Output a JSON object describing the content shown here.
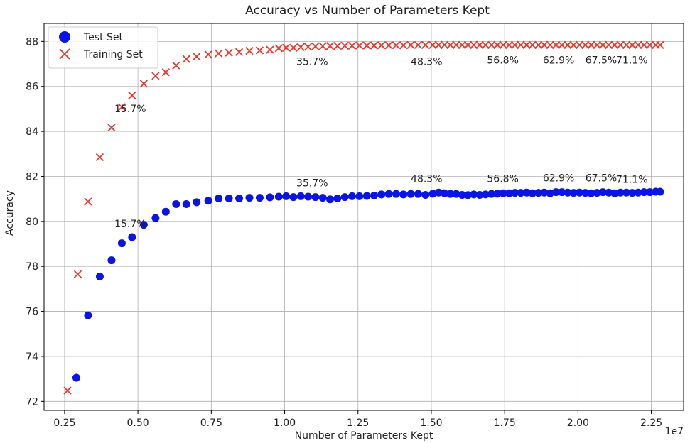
{
  "chart_data": {
    "type": "scatter",
    "title": "Accuracy vs Number of Parameters Kept",
    "xlabel": "Number of Parameters Kept",
    "ylabel": "Accuracy",
    "x_scale_label": "1e7",
    "xlim": [
      1800000,
      23600000
    ],
    "ylim": [
      71.6,
      88.8
    ],
    "x_ticks": [
      2500000,
      5000000,
      7500000,
      10000000,
      12500000,
      15000000,
      17500000,
      20000000,
      22500000
    ],
    "x_tick_labels": [
      "0.25",
      "0.50",
      "0.75",
      "1.00",
      "1.25",
      "1.50",
      "1.75",
      "2.00",
      "2.25"
    ],
    "y_ticks": [
      72,
      74,
      76,
      78,
      80,
      82,
      84,
      86,
      88
    ],
    "y_tick_labels": [
      "72",
      "74",
      "76",
      "78",
      "80",
      "82",
      "84",
      "86",
      "88"
    ],
    "grid": true,
    "legend_position": "top-left",
    "series": [
      {
        "name": "Test Set",
        "marker": "circle",
        "color": "#0a14e6",
        "points": [
          [
            2900000,
            73.05
          ],
          [
            3300000,
            75.82
          ],
          [
            3700000,
            77.55
          ],
          [
            4100000,
            78.27
          ],
          [
            4450000,
            79.03
          ],
          [
            4800000,
            79.3
          ],
          [
            5200000,
            79.85
          ],
          [
            5600000,
            80.15
          ],
          [
            5950000,
            80.43
          ],
          [
            6300000,
            80.77
          ],
          [
            6650000,
            80.77
          ],
          [
            7000000,
            80.85
          ],
          [
            7400000,
            80.92
          ],
          [
            7750000,
            81.02
          ],
          [
            8100000,
            81.02
          ],
          [
            8450000,
            81.02
          ],
          [
            8800000,
            81.05
          ],
          [
            9150000,
            81.05
          ],
          [
            9500000,
            81.07
          ],
          [
            9800000,
            81.1
          ],
          [
            10050000,
            81.12
          ],
          [
            10300000,
            81.08
          ],
          [
            10550000,
            81.12
          ],
          [
            10800000,
            81.1
          ],
          [
            11050000,
            81.08
          ],
          [
            11300000,
            81.05
          ],
          [
            11550000,
            80.98
          ],
          [
            11800000,
            81.02
          ],
          [
            12050000,
            81.08
          ],
          [
            12300000,
            81.12
          ],
          [
            12550000,
            81.12
          ],
          [
            12800000,
            81.13
          ],
          [
            13050000,
            81.15
          ],
          [
            13300000,
            81.2
          ],
          [
            13550000,
            81.22
          ],
          [
            13800000,
            81.22
          ],
          [
            14050000,
            81.2
          ],
          [
            14300000,
            81.22
          ],
          [
            14550000,
            81.22
          ],
          [
            14800000,
            81.18
          ],
          [
            15050000,
            81.23
          ],
          [
            15250000,
            81.28
          ],
          [
            15450000,
            81.25
          ],
          [
            15650000,
            81.22
          ],
          [
            15850000,
            81.22
          ],
          [
            16050000,
            81.18
          ],
          [
            16250000,
            81.17
          ],
          [
            16450000,
            81.2
          ],
          [
            16650000,
            81.18
          ],
          [
            16850000,
            81.2
          ],
          [
            17050000,
            81.22
          ],
          [
            17250000,
            81.23
          ],
          [
            17450000,
            81.25
          ],
          [
            17650000,
            81.25
          ],
          [
            17850000,
            81.27
          ],
          [
            18050000,
            81.27
          ],
          [
            18250000,
            81.28
          ],
          [
            18450000,
            81.25
          ],
          [
            18650000,
            81.27
          ],
          [
            18850000,
            81.28
          ],
          [
            19050000,
            81.25
          ],
          [
            19250000,
            81.3
          ],
          [
            19450000,
            81.3
          ],
          [
            19650000,
            81.28
          ],
          [
            19850000,
            81.27
          ],
          [
            20050000,
            81.28
          ],
          [
            20250000,
            81.27
          ],
          [
            20450000,
            81.25
          ],
          [
            20650000,
            81.27
          ],
          [
            20850000,
            81.3
          ],
          [
            21050000,
            81.28
          ],
          [
            21250000,
            81.25
          ],
          [
            21450000,
            81.28
          ],
          [
            21650000,
            81.28
          ],
          [
            21850000,
            81.27
          ],
          [
            22050000,
            81.28
          ],
          [
            22250000,
            81.3
          ],
          [
            22450000,
            81.3
          ],
          [
            22650000,
            81.32
          ],
          [
            22800000,
            81.32
          ]
        ]
      },
      {
        "name": "Training Set",
        "marker": "x",
        "color": "#e8392d",
        "points": [
          [
            2600000,
            72.48
          ],
          [
            2950000,
            77.65
          ],
          [
            3300000,
            80.88
          ],
          [
            3700000,
            82.85
          ],
          [
            4100000,
            84.17
          ],
          [
            4450000,
            85.08
          ],
          [
            4800000,
            85.6
          ],
          [
            5200000,
            86.12
          ],
          [
            5600000,
            86.47
          ],
          [
            5950000,
            86.63
          ],
          [
            6300000,
            86.93
          ],
          [
            6650000,
            87.22
          ],
          [
            7000000,
            87.33
          ],
          [
            7400000,
            87.42
          ],
          [
            7750000,
            87.47
          ],
          [
            8100000,
            87.5
          ],
          [
            8450000,
            87.53
          ],
          [
            8800000,
            87.58
          ],
          [
            9150000,
            87.6
          ],
          [
            9500000,
            87.63
          ],
          [
            9800000,
            87.7
          ],
          [
            10050000,
            87.72
          ],
          [
            10300000,
            87.72
          ],
          [
            10550000,
            87.75
          ],
          [
            10800000,
            87.76
          ],
          [
            11050000,
            87.78
          ],
          [
            11300000,
            87.79
          ],
          [
            11550000,
            87.8
          ],
          [
            11800000,
            87.8
          ],
          [
            12050000,
            87.81
          ],
          [
            12300000,
            87.81
          ],
          [
            12550000,
            87.82
          ],
          [
            12800000,
            87.82
          ],
          [
            13050000,
            87.82
          ],
          [
            13300000,
            87.83
          ],
          [
            13550000,
            87.83
          ],
          [
            13800000,
            87.83
          ],
          [
            14050000,
            87.83
          ],
          [
            14300000,
            87.84
          ],
          [
            14550000,
            87.84
          ],
          [
            14800000,
            87.84
          ],
          [
            15050000,
            87.84
          ],
          [
            15250000,
            87.84
          ],
          [
            15450000,
            87.84
          ],
          [
            15650000,
            87.84
          ],
          [
            15850000,
            87.84
          ],
          [
            16050000,
            87.84
          ],
          [
            16250000,
            87.84
          ],
          [
            16450000,
            87.84
          ],
          [
            16650000,
            87.84
          ],
          [
            16850000,
            87.84
          ],
          [
            17050000,
            87.84
          ],
          [
            17250000,
            87.84
          ],
          [
            17450000,
            87.84
          ],
          [
            17650000,
            87.84
          ],
          [
            17850000,
            87.84
          ],
          [
            18050000,
            87.84
          ],
          [
            18250000,
            87.84
          ],
          [
            18450000,
            87.84
          ],
          [
            18650000,
            87.84
          ],
          [
            18850000,
            87.84
          ],
          [
            19050000,
            87.84
          ],
          [
            19250000,
            87.84
          ],
          [
            19450000,
            87.84
          ],
          [
            19650000,
            87.84
          ],
          [
            19850000,
            87.84
          ],
          [
            20050000,
            87.84
          ],
          [
            20250000,
            87.84
          ],
          [
            20450000,
            87.84
          ],
          [
            20650000,
            87.84
          ],
          [
            20850000,
            87.84
          ],
          [
            21050000,
            87.84
          ],
          [
            21250000,
            87.84
          ],
          [
            21450000,
            87.84
          ],
          [
            21650000,
            87.84
          ],
          [
            21850000,
            87.84
          ],
          [
            22050000,
            87.84
          ],
          [
            22250000,
            87.84
          ],
          [
            22450000,
            87.84
          ],
          [
            22650000,
            87.84
          ],
          [
            22800000,
            87.84
          ]
        ]
      }
    ],
    "annotations": [
      {
        "text": "15.7%",
        "x": 4200000,
        "y": 79.75
      },
      {
        "text": "35.7%",
        "x": 10400000,
        "y": 81.55
      },
      {
        "text": "48.3%",
        "x": 14300000,
        "y": 81.75
      },
      {
        "text": "56.8%",
        "x": 16900000,
        "y": 81.75
      },
      {
        "text": "62.9%",
        "x": 18800000,
        "y": 81.78
      },
      {
        "text": "67.5%",
        "x": 20250000,
        "y": 81.78
      },
      {
        "text": "71.1%",
        "x": 21300000,
        "y": 81.72
      },
      {
        "text": "15.7%",
        "x": 4200000,
        "y": 84.85
      },
      {
        "text": "35.7%",
        "x": 10400000,
        "y": 86.95
      },
      {
        "text": "48.3%",
        "x": 14300000,
        "y": 86.95
      },
      {
        "text": "56.8%",
        "x": 16900000,
        "y": 87.02
      },
      {
        "text": "62.9%",
        "x": 18800000,
        "y": 87.02
      },
      {
        "text": "67.5%",
        "x": 20250000,
        "y": 87.02
      },
      {
        "text": "71.1%",
        "x": 21300000,
        "y": 87.02
      }
    ]
  }
}
